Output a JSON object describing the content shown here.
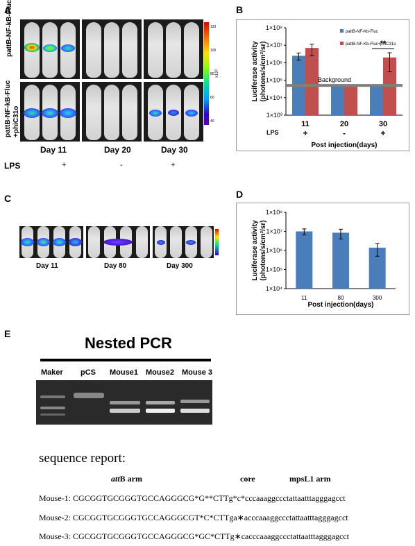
{
  "panels": {
    "A": "A",
    "B": "B",
    "C": "C",
    "D": "D",
    "E": "E"
  },
  "panelA": {
    "row1_label": "pattB-NF-kB-Fluc",
    "row2_label_line1": "pattB-NF-kB-Fluc",
    "row2_label_line2": "+phiC31o",
    "days": [
      "Day 11",
      "Day 20",
      "Day 30"
    ],
    "lps_label": "LPS",
    "lps_values": [
      "+",
      "-",
      "+"
    ],
    "colorbar_ticks": [
      "120",
      "100",
      "80",
      "60",
      "40"
    ],
    "colorbar_unit": "x10³"
  },
  "panelC": {
    "days": [
      "Day 11",
      "Day 80",
      "Day 300"
    ]
  },
  "colors": {
    "fluc": "#4a7ebb",
    "fluc_phic": "#c0504d",
    "background_line": "#7f7f7f"
  },
  "chart_data": [
    {
      "type": "bar",
      "panel": "B",
      "yscale": "log",
      "ylim": [
        1000,
        100000000
      ],
      "yticks": [
        "1×10³",
        "1×10⁴",
        "1×10⁵",
        "1×10⁶",
        "1×10⁷",
        "1×10⁸"
      ],
      "ylabel_line1": "Luciferase activity",
      "ylabel_line2": "(photons/s/cm²/sr)",
      "xlabel": "Post injection(days)",
      "categories": [
        "11",
        "20",
        "30"
      ],
      "lps_label": "LPS",
      "lps": [
        "+",
        "-",
        "+"
      ],
      "series": [
        {
          "name": "pattB-NF-Kb-Fluc",
          "values": [
            2500000,
            50000,
            50000
          ],
          "errors": [
            1100000,
            0,
            0
          ]
        },
        {
          "name": "pattB-NF-Kb-Fluc+phiC31o",
          "values": [
            7000000,
            50000,
            2000000
          ],
          "errors": [
            4500000,
            0,
            1700000
          ]
        }
      ],
      "background_value": 50000,
      "background_label": "Background",
      "significance": {
        "category": "30",
        "label": "**"
      }
    },
    {
      "type": "bar",
      "panel": "D",
      "yscale": "log",
      "ylim": [
        10000,
        100000000
      ],
      "yticks": [
        "1×10⁴",
        "1×10⁵",
        "1×10⁶",
        "1×10⁷",
        "1×10⁸"
      ],
      "ylabel_line1": "Luciferase activity",
      "ylabel_line2": "(photons/s/cm²/sr)",
      "xlabel": "Post injection(days)",
      "categories": [
        "11",
        "80",
        "300"
      ],
      "series": [
        {
          "values": [
            10000000,
            8500000,
            1400000
          ],
          "errors": [
            3500000,
            4500000,
            900000
          ]
        }
      ]
    }
  ],
  "panelE": {
    "title": "Nested PCR",
    "lanes": [
      "Maker",
      "pCS",
      "Mouse1",
      "Mouse2",
      "Mouse 3"
    ],
    "report_title": "sequence report:",
    "headers": {
      "att": "att",
      "attB": "B arm",
      "core": "core",
      "arm": "mpsL1 arm"
    },
    "sequences": [
      {
        "label": "Mouse-1:",
        "seq": "CGCGGTGCGGGTGCCAGGGCG*G**CTTg*c*cccaaaggccctattaatttagggagcct"
      },
      {
        "label": "Mouse-2:",
        "seq": "CGCGGTGCGGGTGCCAGGGCGT*C*CTTga∗acccaaaggccctattaatttagggagcct"
      },
      {
        "label": "Mouse-3:",
        "seq": "CGCGGTGCGGGTGCCAGGGCG*GC*CTTg∗cacccaaaggccctattaatttagggagcct"
      }
    ]
  }
}
